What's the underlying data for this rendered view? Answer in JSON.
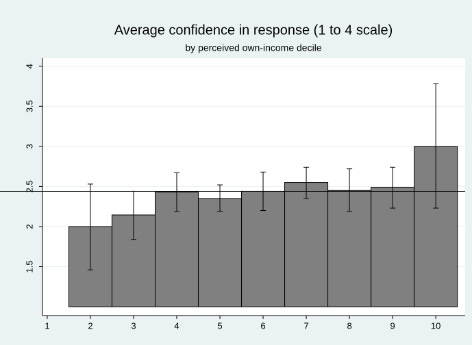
{
  "chart_data": {
    "type": "bar",
    "title": "Average confidence in response (1 to 4 scale)",
    "subtitle": "by perceived own-income decile",
    "x": [
      2,
      3,
      4,
      5,
      6,
      7,
      8,
      9,
      10
    ],
    "values": [
      2.0,
      2.145,
      2.43,
      2.35,
      2.44,
      2.55,
      2.45,
      2.49,
      3.0
    ],
    "upper": [
      2.53,
      2.44,
      2.67,
      2.52,
      2.68,
      2.74,
      2.72,
      2.74,
      3.78
    ],
    "lower": [
      1.46,
      1.84,
      2.19,
      2.19,
      2.2,
      2.35,
      2.19,
      2.23,
      2.23
    ],
    "base": 1,
    "reference_line": 2.44,
    "color": "#808080",
    "xlim": [
      0.89,
      10.68
    ],
    "xticks": [
      1,
      2,
      3,
      4,
      5,
      6,
      7,
      8,
      9,
      10
    ],
    "ylim": [
      0.89,
      4.1
    ],
    "yticks": [
      1.5,
      2,
      2.5,
      3,
      3.5,
      4
    ],
    "grid": true
  }
}
